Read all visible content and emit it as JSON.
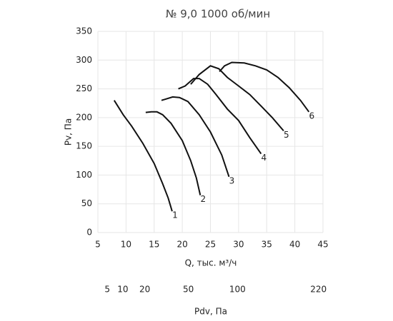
{
  "chart_data": {
    "type": "line",
    "title": "№ 9,0 1000 об/мин",
    "x_label": "Q, тыс. м³/ч",
    "y_label": "Pv, Па",
    "xlim": [
      5,
      45
    ],
    "xticks": [
      5,
      10,
      15,
      20,
      25,
      30,
      35,
      40,
      45
    ],
    "ylim": [
      0,
      350
    ],
    "yticks": [
      0,
      50,
      100,
      150,
      200,
      250,
      300,
      350
    ],
    "grid": true,
    "x2_label": "Pdv, Па",
    "x2scale": "sqrt",
    "x2lim": [
      2.8,
      228
    ],
    "x2ticks": [
      5,
      10,
      20,
      50,
      100,
      220
    ],
    "series": [
      {
        "name": "1",
        "color": "#111111",
        "x": [
          7.9,
          9.5,
          11,
          13,
          15,
          16.5,
          17.5,
          18.2
        ],
        "values": [
          230,
          205,
          185,
          155,
          120,
          85,
          60,
          37
        ]
      },
      {
        "name": "2",
        "color": "#111111",
        "x": [
          13.5,
          14.5,
          15.5,
          16.5,
          18,
          20,
          21.5,
          22.5,
          23.2
        ],
        "values": [
          209,
          210,
          210,
          205,
          190,
          160,
          125,
          95,
          65
        ]
      },
      {
        "name": "3",
        "color": "#111111",
        "x": [
          16.3,
          17,
          18.3,
          19.5,
          21,
          23,
          25,
          27,
          28.3
        ],
        "values": [
          230,
          232,
          236,
          235,
          228,
          205,
          175,
          135,
          97
        ]
      },
      {
        "name": "4",
        "color": "#111111",
        "x": [
          19.3,
          20.5,
          22,
          23,
          24.5,
          26,
          28,
          30,
          32,
          34
        ],
        "values": [
          250,
          255,
          268,
          268,
          258,
          240,
          215,
          195,
          165,
          137
        ]
      },
      {
        "name": "5",
        "color": "#111111",
        "x": [
          21.5,
          23,
          25,
          26.5,
          28,
          30,
          32,
          34,
          36,
          38
        ],
        "values": [
          258,
          275,
          290,
          285,
          270,
          255,
          240,
          220,
          200,
          177
        ]
      },
      {
        "name": "6",
        "color": "#111111",
        "x": [
          26.6,
          27.5,
          28.8,
          31,
          33,
          35,
          37,
          39,
          41,
          42.5
        ],
        "values": [
          280,
          290,
          296,
          295,
          290,
          283,
          270,
          252,
          230,
          210
        ]
      }
    ]
  }
}
